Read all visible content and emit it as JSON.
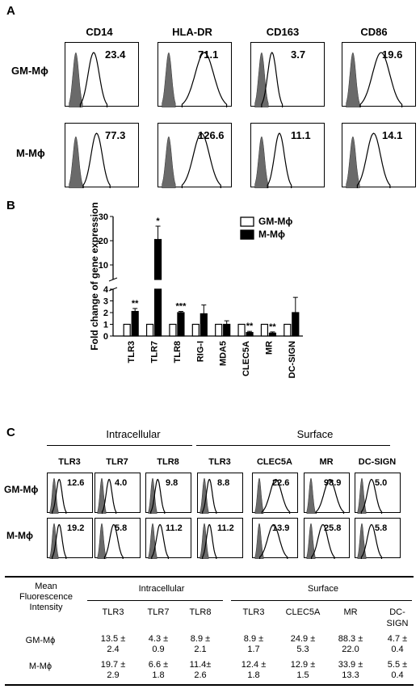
{
  "panel_a": {
    "letter": "A",
    "columns": [
      "CD14",
      "HLA-DR",
      "CD163",
      "CD86"
    ],
    "rows": [
      {
        "label": "GM-Mϕ",
        "values": [
          "23.4",
          "71.1",
          "3.7",
          "19.6"
        ]
      },
      {
        "label": "M-Mϕ",
        "values": [
          "77.3",
          "126.6",
          "11.1",
          "14.1"
        ]
      }
    ]
  },
  "panel_b": {
    "letter": "B",
    "chart_data": {
      "type": "bar",
      "categories": [
        "TLR3",
        "TLR7",
        "TLR8",
        "RIG-I",
        "MDA5",
        "CLEC5A",
        "MR",
        "DC-SIGN"
      ],
      "series": [
        {
          "name": "GM-Mϕ",
          "values": [
            1,
            1,
            1,
            1,
            1,
            1,
            1,
            1
          ],
          "errors": [
            0,
            0,
            0,
            0,
            0,
            0,
            0,
            0
          ],
          "color": "#ffffff"
        },
        {
          "name": "M-Mϕ",
          "values": [
            2.1,
            20.5,
            2.0,
            1.9,
            1.0,
            0.3,
            0.25,
            2.0
          ],
          "errors": [
            0.25,
            5.5,
            0.1,
            0.75,
            0.3,
            0.1,
            0.1,
            1.3
          ],
          "color": "#000000"
        }
      ],
      "significance": [
        "**",
        "*",
        "***",
        "",
        "",
        "**",
        "**",
        ""
      ],
      "ylabel": "Fold change of gene expression",
      "y_lower_ticks": [
        "0",
        "1",
        "2",
        "3",
        "4"
      ],
      "y_upper_ticks": [
        "10",
        "20",
        "30"
      ],
      "ylim_lower": [
        0,
        4
      ],
      "ylim_upper": [
        4,
        30
      ],
      "legend": "top-right"
    }
  },
  "panel_c": {
    "letter": "C",
    "groups": {
      "intracellular": "Intracellular",
      "surface": "Surface"
    },
    "columns": [
      "TLR3",
      "TLR7",
      "TLR8",
      "TLR3",
      "CLEC5A",
      "MR",
      "DC-SIGN"
    ],
    "rows": [
      {
        "label": "GM-Mϕ",
        "values": [
          "12.6",
          "4.0",
          "9.8",
          "8.8",
          "22.6",
          "98.9",
          "5.0"
        ]
      },
      {
        "label": "M-Mϕ",
        "values": [
          "19.2",
          "5.8",
          "11.2",
          "11.2",
          "13.9",
          "25.8",
          "5.8"
        ]
      }
    ]
  },
  "table": {
    "header_label": [
      "Mean",
      "Fluorescence",
      "Intensity"
    ],
    "intracellular": "Intracellular",
    "surface": "Surface",
    "columns": [
      "TLR3",
      "TLR7",
      "TLR8",
      "TLR3",
      "CLEC5A",
      "MR",
      "DC-"
    ],
    "column_last_line2": "SIGN",
    "rows": [
      {
        "label": "GM-Mϕ",
        "top": [
          "13.5 ±",
          "4.3 ±",
          "8.9 ±",
          "8.9 ±",
          "24.9 ±",
          "88.3 ±",
          "4.7 ±"
        ],
        "bottom": [
          "2.4",
          "0.9",
          "2.1",
          "1.7",
          "5.3",
          "22.0",
          "0.4"
        ]
      },
      {
        "label": "M-Mϕ",
        "top": [
          "19.7 ±",
          "6.6 ±",
          "11.4±",
          "12.4 ±",
          "12.9 ±",
          "33.9 ±",
          "5.5 ±"
        ],
        "bottom": [
          "2.9",
          "1.8",
          "2.6",
          "1.8",
          "1.5",
          "13.3",
          "0.4"
        ]
      }
    ]
  }
}
